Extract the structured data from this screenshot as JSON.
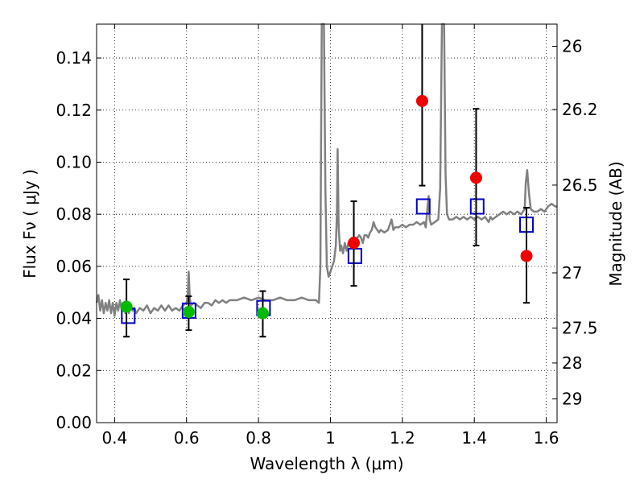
{
  "chart_data": {
    "type": "scatter",
    "xlabel": "Wavelength  λ (μm)",
    "ylabel": "Flux  Fν  ( μJy )",
    "y2label": "Magnitude (AB)",
    "xlim": [
      0.35,
      1.63
    ],
    "ylim": [
      0.0,
      0.153
    ],
    "x_ticks": [
      0.4,
      0.6,
      0.8,
      1.0,
      1.2,
      1.4,
      1.6
    ],
    "x_tick_labels": [
      "0.4",
      "0.6",
      "0.8",
      "1",
      "1.2",
      "1.4",
      "1.6"
    ],
    "y_ticks": [
      0.0,
      0.02,
      0.04,
      0.06,
      0.08,
      0.1,
      0.12,
      0.14
    ],
    "y_tick_labels": [
      "0.00",
      "0.02",
      "0.04",
      "0.06",
      "0.08",
      "0.10",
      "0.12",
      "0.14"
    ],
    "y2_ticks": [
      {
        "label": "26",
        "flux": 0.1445
      },
      {
        "label": "26.2",
        "flux": 0.1202
      },
      {
        "label": "26.5",
        "flux": 0.0912
      },
      {
        "label": "27",
        "flux": 0.0575
      },
      {
        "label": "27.5",
        "flux": 0.0363
      },
      {
        "label": "28",
        "flux": 0.0229
      },
      {
        "label": "29",
        "flux": 0.0091
      }
    ],
    "grid": true,
    "colors": {
      "spectrum": "#808080",
      "model_box": "#0000cc",
      "green_points": "#00bb00",
      "red_points": "#ee0000",
      "errorbar": "#000000"
    },
    "series": [
      {
        "kind": "line",
        "points": [
          [
            0.35,
            0.046
          ],
          [
            0.355,
            0.049
          ],
          [
            0.36,
            0.043
          ],
          [
            0.365,
            0.047
          ],
          [
            0.37,
            0.042
          ],
          [
            0.375,
            0.046
          ],
          [
            0.38,
            0.043
          ],
          [
            0.385,
            0.047
          ],
          [
            0.39,
            0.042
          ],
          [
            0.395,
            0.046
          ],
          [
            0.4,
            0.041
          ],
          [
            0.405,
            0.046
          ],
          [
            0.41,
            0.043
          ],
          [
            0.415,
            0.047
          ],
          [
            0.42,
            0.043
          ],
          [
            0.425,
            0.046
          ],
          [
            0.43,
            0.042
          ],
          [
            0.435,
            0.046
          ],
          [
            0.44,
            0.042
          ],
          [
            0.445,
            0.045
          ],
          [
            0.45,
            0.043
          ],
          [
            0.455,
            0.044
          ],
          [
            0.46,
            0.042
          ],
          [
            0.47,
            0.044
          ],
          [
            0.48,
            0.043
          ],
          [
            0.49,
            0.045
          ],
          [
            0.5,
            0.042
          ],
          [
            0.51,
            0.044
          ],
          [
            0.52,
            0.043
          ],
          [
            0.53,
            0.045
          ],
          [
            0.54,
            0.043
          ],
          [
            0.55,
            0.045
          ],
          [
            0.56,
            0.043
          ],
          [
            0.57,
            0.044
          ],
          [
            0.58,
            0.043
          ],
          [
            0.59,
            0.045
          ],
          [
            0.6,
            0.046
          ],
          [
            0.603,
            0.048
          ],
          [
            0.606,
            0.058
          ],
          [
            0.609,
            0.048
          ],
          [
            0.612,
            0.045
          ],
          [
            0.62,
            0.046
          ],
          [
            0.63,
            0.045
          ],
          [
            0.64,
            0.044
          ],
          [
            0.65,
            0.046
          ],
          [
            0.66,
            0.046
          ],
          [
            0.67,
            0.045
          ],
          [
            0.68,
            0.047
          ],
          [
            0.69,
            0.046
          ],
          [
            0.7,
            0.047
          ],
          [
            0.71,
            0.046
          ],
          [
            0.72,
            0.047
          ],
          [
            0.74,
            0.047
          ],
          [
            0.76,
            0.048
          ],
          [
            0.78,
            0.047
          ],
          [
            0.8,
            0.048
          ],
          [
            0.82,
            0.047
          ],
          [
            0.84,
            0.047
          ],
          [
            0.86,
            0.048
          ],
          [
            0.88,
            0.047
          ],
          [
            0.9,
            0.047
          ],
          [
            0.92,
            0.048
          ],
          [
            0.94,
            0.047
          ],
          [
            0.96,
            0.047
          ],
          [
            0.968,
            0.046
          ],
          [
            0.972,
            0.06
          ],
          [
            0.976,
            0.153
          ],
          [
            0.982,
            0.153
          ],
          [
            0.986,
            0.09
          ],
          [
            0.99,
            0.06
          ],
          [
            0.995,
            0.056
          ],
          [
            1.0,
            0.058
          ],
          [
            1.005,
            0.06
          ],
          [
            1.01,
            0.062
          ],
          [
            1.015,
            0.068
          ],
          [
            1.018,
            0.08
          ],
          [
            1.02,
            0.105
          ],
          [
            1.023,
            0.075
          ],
          [
            1.027,
            0.066
          ],
          [
            1.03,
            0.068
          ],
          [
            1.035,
            0.065
          ],
          [
            1.04,
            0.069
          ],
          [
            1.045,
            0.066
          ],
          [
            1.05,
            0.069
          ],
          [
            1.055,
            0.068
          ],
          [
            1.06,
            0.071
          ],
          [
            1.065,
            0.07
          ],
          [
            1.07,
            0.071
          ],
          [
            1.075,
            0.071
          ],
          [
            1.08,
            0.072
          ],
          [
            1.085,
            0.071
          ],
          [
            1.09,
            0.069
          ],
          [
            1.095,
            0.072
          ],
          [
            1.1,
            0.072
          ],
          [
            1.105,
            0.071
          ],
          [
            1.11,
            0.073
          ],
          [
            1.115,
            0.074
          ],
          [
            1.12,
            0.077
          ],
          [
            1.125,
            0.075
          ],
          [
            1.13,
            0.074
          ],
          [
            1.135,
            0.073
          ],
          [
            1.14,
            0.074
          ],
          [
            1.15,
            0.073
          ],
          [
            1.16,
            0.074
          ],
          [
            1.17,
            0.078
          ],
          [
            1.175,
            0.074
          ],
          [
            1.18,
            0.075
          ],
          [
            1.19,
            0.075
          ],
          [
            1.2,
            0.076
          ],
          [
            1.21,
            0.075
          ],
          [
            1.22,
            0.076
          ],
          [
            1.23,
            0.076
          ],
          [
            1.24,
            0.077
          ],
          [
            1.25,
            0.076
          ],
          [
            1.26,
            0.077
          ],
          [
            1.265,
            0.075
          ],
          [
            1.27,
            0.083
          ],
          [
            1.273,
            0.087
          ],
          [
            1.276,
            0.078
          ],
          [
            1.28,
            0.076
          ],
          [
            1.29,
            0.077
          ],
          [
            1.3,
            0.078
          ],
          [
            1.305,
            0.09
          ],
          [
            1.31,
            0.153
          ],
          [
            1.316,
            0.153
          ],
          [
            1.32,
            0.095
          ],
          [
            1.324,
            0.08
          ],
          [
            1.33,
            0.078
          ],
          [
            1.34,
            0.078
          ],
          [
            1.35,
            0.079
          ],
          [
            1.36,
            0.078
          ],
          [
            1.37,
            0.079
          ],
          [
            1.38,
            0.078
          ],
          [
            1.39,
            0.079
          ],
          [
            1.4,
            0.078
          ],
          [
            1.41,
            0.079
          ],
          [
            1.42,
            0.078
          ],
          [
            1.43,
            0.079
          ],
          [
            1.44,
            0.077
          ],
          [
            1.445,
            0.079
          ],
          [
            1.45,
            0.078
          ],
          [
            1.46,
            0.079
          ],
          [
            1.47,
            0.08
          ],
          [
            1.48,
            0.081
          ],
          [
            1.49,
            0.08
          ],
          [
            1.5,
            0.081
          ],
          [
            1.51,
            0.08
          ],
          [
            1.52,
            0.081
          ],
          [
            1.53,
            0.08
          ],
          [
            1.54,
            0.082
          ],
          [
            1.543,
            0.092
          ],
          [
            1.547,
            0.097
          ],
          [
            1.552,
            0.088
          ],
          [
            1.557,
            0.082
          ],
          [
            1.565,
            0.081
          ],
          [
            1.575,
            0.081
          ],
          [
            1.585,
            0.082
          ],
          [
            1.595,
            0.081
          ],
          [
            1.605,
            0.083
          ],
          [
            1.615,
            0.084
          ],
          [
            1.625,
            0.083
          ],
          [
            1.63,
            0.083
          ]
        ]
      },
      {
        "kind": "box",
        "points": [
          [
            0.438,
            0.041
          ],
          [
            0.607,
            0.043
          ],
          [
            0.814,
            0.044
          ],
          [
            1.068,
            0.064
          ],
          [
            1.258,
            0.083
          ],
          [
            1.408,
            0.083
          ],
          [
            1.545,
            0.076
          ]
        ]
      },
      {
        "kind": "errorbar",
        "color": "green",
        "points": [
          {
            "x": 0.433,
            "y": 0.0445,
            "lo": 0.033,
            "hi": 0.055
          },
          {
            "x": 0.606,
            "y": 0.0425,
            "lo": 0.0355,
            "hi": 0.0485
          },
          {
            "x": 0.812,
            "y": 0.042,
            "lo": 0.033,
            "hi": 0.0505
          }
        ]
      },
      {
        "kind": "errorbar",
        "color": "red",
        "points": [
          {
            "x": 1.065,
            "y": 0.069,
            "lo": 0.0525,
            "hi": 0.085
          },
          {
            "x": 1.255,
            "y": 0.1235,
            "lo": 0.091,
            "hi": 0.153
          },
          {
            "x": 1.405,
            "y": 0.094,
            "lo": 0.068,
            "hi": 0.1205
          },
          {
            "x": 1.545,
            "y": 0.064,
            "lo": 0.046,
            "hi": 0.0825
          }
        ]
      }
    ]
  }
}
